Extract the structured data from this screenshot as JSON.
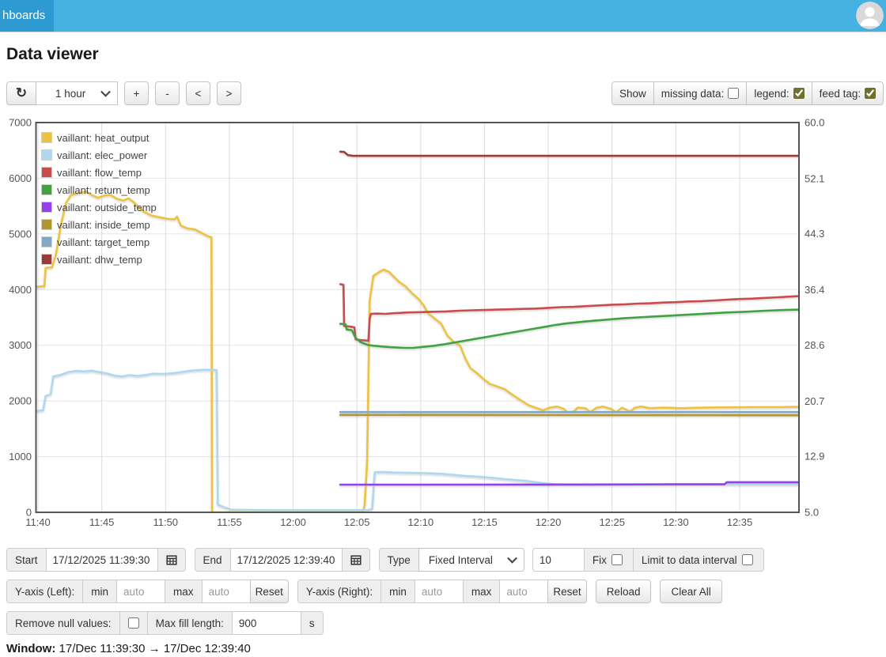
{
  "nav": {
    "tab_label": "hboards"
  },
  "page": {
    "title": "Data viewer"
  },
  "toolbar": {
    "refresh_icon": "↻",
    "interval_value": "1 hour",
    "zoom_in_label": "+",
    "zoom_out_label": "-",
    "pan_left_label": "<",
    "pan_right_label": ">",
    "show_label": "Show",
    "missing_data_label": "missing data:",
    "legend_label": "legend:",
    "feed_tag_label": "feed tag:",
    "missing_data_checked": false,
    "legend_checked": true,
    "feed_tag_checked": true
  },
  "chart_data": {
    "type": "line",
    "x_unit": "minutes since 11:40",
    "x_ticks": [
      "11:40",
      "11:45",
      "11:50",
      "11:55",
      "12:00",
      "12:05",
      "12:10",
      "12:15",
      "12:20",
      "12:25",
      "12:30",
      "12:35"
    ],
    "left_axis": {
      "min": 0,
      "max": 7000,
      "ticks": [
        0,
        1000,
        2000,
        3000,
        4000,
        5000,
        6000,
        7000
      ]
    },
    "right_axis": {
      "min": 5.0,
      "max": 60.0,
      "ticks": [
        5.0,
        12.9,
        20.7,
        28.6,
        36.4,
        44.3,
        52.1,
        60.0
      ]
    },
    "grid": true,
    "legend_position": "top-left",
    "series": [
      {
        "name": "vaillant: heat_output",
        "color": "#edc240",
        "axis": "left",
        "points": [
          [
            -0.2,
            4050
          ],
          [
            0.5,
            4060
          ],
          [
            0.6,
            4390
          ],
          [
            1.1,
            4400
          ],
          [
            1.4,
            4620
          ],
          [
            1.8,
            5160
          ],
          [
            2.2,
            5560
          ],
          [
            2.6,
            5700
          ],
          [
            3.2,
            5730
          ],
          [
            3.8,
            5760
          ],
          [
            4.2,
            5700
          ],
          [
            4.7,
            5650
          ],
          [
            5.2,
            5690
          ],
          [
            5.7,
            5700
          ],
          [
            6.2,
            5630
          ],
          [
            6.7,
            5600
          ],
          [
            7.1,
            5640
          ],
          [
            7.5,
            5570
          ],
          [
            7.9,
            5480
          ],
          [
            8.3,
            5400
          ],
          [
            8.9,
            5330
          ],
          [
            9.5,
            5300
          ],
          [
            10.2,
            5270
          ],
          [
            10.7,
            5260
          ],
          [
            10.9,
            5310
          ],
          [
            11.2,
            5150
          ],
          [
            11.7,
            5100
          ],
          [
            12.3,
            5080
          ],
          [
            12.9,
            5010
          ],
          [
            13.3,
            4960
          ],
          [
            13.6,
            4940
          ],
          [
            13.65,
            0
          ],
          [
            25.45,
            0
          ],
          [
            25.6,
            120
          ],
          [
            25.8,
            900
          ],
          [
            26.0,
            3800
          ],
          [
            26.3,
            4250
          ],
          [
            26.7,
            4310
          ],
          [
            27.1,
            4360
          ],
          [
            27.5,
            4320
          ],
          [
            27.9,
            4230
          ],
          [
            28.3,
            4140
          ],
          [
            28.8,
            4060
          ],
          [
            29.3,
            3940
          ],
          [
            29.8,
            3840
          ],
          [
            30.2,
            3730
          ],
          [
            30.6,
            3570
          ],
          [
            31.1,
            3480
          ],
          [
            31.6,
            3390
          ],
          [
            32.1,
            3170
          ],
          [
            32.6,
            3060
          ],
          [
            33.1,
            2990
          ],
          [
            33.5,
            2760
          ],
          [
            33.9,
            2590
          ],
          [
            34.4,
            2500
          ],
          [
            34.9,
            2400
          ],
          [
            35.4,
            2310
          ],
          [
            36.0,
            2260
          ],
          [
            36.6,
            2210
          ],
          [
            37.2,
            2110
          ],
          [
            37.8,
            2020
          ],
          [
            38.4,
            1930
          ],
          [
            39.0,
            1880
          ],
          [
            39.6,
            1830
          ],
          [
            40.1,
            1880
          ],
          [
            40.7,
            1900
          ],
          [
            41.2,
            1860
          ],
          [
            41.5,
            1800
          ],
          [
            42.0,
            1810
          ],
          [
            42.3,
            1880
          ],
          [
            42.9,
            1870
          ],
          [
            43.3,
            1800
          ],
          [
            43.8,
            1880
          ],
          [
            44.3,
            1900
          ],
          [
            44.9,
            1860
          ],
          [
            45.3,
            1800
          ],
          [
            45.8,
            1880
          ],
          [
            46.4,
            1810
          ],
          [
            46.8,
            1880
          ],
          [
            47.3,
            1900
          ],
          [
            48.0,
            1870
          ],
          [
            49.0,
            1880
          ],
          [
            50.5,
            1870
          ],
          [
            52.0,
            1880
          ],
          [
            54.0,
            1885
          ],
          [
            56.0,
            1890
          ],
          [
            58.0,
            1890
          ],
          [
            59.6,
            1895
          ]
        ]
      },
      {
        "name": "vaillant: elec_power",
        "color": "#aed7f0",
        "axis": "left",
        "points": [
          [
            -0.2,
            1820
          ],
          [
            0.4,
            1830
          ],
          [
            0.6,
            2090
          ],
          [
            1.0,
            2120
          ],
          [
            1.2,
            2440
          ],
          [
            1.8,
            2470
          ],
          [
            2.4,
            2520
          ],
          [
            3.0,
            2540
          ],
          [
            3.6,
            2530
          ],
          [
            4.2,
            2545
          ],
          [
            4.8,
            2520
          ],
          [
            5.4,
            2495
          ],
          [
            6.0,
            2455
          ],
          [
            6.6,
            2440
          ],
          [
            7.2,
            2465
          ],
          [
            7.8,
            2450
          ],
          [
            8.4,
            2465
          ],
          [
            9.0,
            2490
          ],
          [
            9.6,
            2485
          ],
          [
            10.2,
            2490
          ],
          [
            10.8,
            2505
          ],
          [
            11.4,
            2525
          ],
          [
            12.0,
            2545
          ],
          [
            12.6,
            2555
          ],
          [
            13.2,
            2560
          ],
          [
            14.0,
            2555
          ],
          [
            14.1,
            140
          ],
          [
            14.6,
            90
          ],
          [
            15.2,
            45
          ],
          [
            18.0,
            40
          ],
          [
            22.0,
            40
          ],
          [
            25.9,
            40
          ],
          [
            26.2,
            60
          ],
          [
            26.4,
            720
          ],
          [
            27.0,
            725
          ],
          [
            27.8,
            715
          ],
          [
            28.6,
            712
          ],
          [
            29.4,
            708
          ],
          [
            30.2,
            705
          ],
          [
            31.0,
            698
          ],
          [
            31.8,
            690
          ],
          [
            32.6,
            672
          ],
          [
            33.4,
            655
          ],
          [
            34.2,
            645
          ],
          [
            35.0,
            632
          ],
          [
            35.8,
            615
          ],
          [
            36.6,
            598
          ],
          [
            37.4,
            582
          ],
          [
            38.2,
            565
          ],
          [
            38.8,
            548
          ],
          [
            39.4,
            532
          ],
          [
            40.0,
            516
          ],
          [
            40.6,
            506
          ],
          [
            41.4,
            500
          ],
          [
            43.0,
            497
          ],
          [
            46.0,
            498
          ],
          [
            50.0,
            500
          ],
          [
            54.0,
            502
          ],
          [
            59.6,
            505
          ]
        ]
      },
      {
        "name": "vaillant: flow_temp",
        "color": "#ca4b4b",
        "axis": "right",
        "points": [
          [
            23.7,
            37.2
          ],
          [
            23.95,
            37.1
          ],
          [
            24.0,
            31.3
          ],
          [
            24.5,
            31.2
          ],
          [
            24.8,
            31.1
          ],
          [
            24.9,
            29.4
          ],
          [
            25.3,
            29.3
          ],
          [
            25.9,
            29.2
          ],
          [
            26.0,
            32.3
          ],
          [
            26.1,
            33.0
          ],
          [
            26.6,
            33.05
          ],
          [
            27.2,
            33.0
          ],
          [
            28.0,
            33.1
          ],
          [
            29.0,
            33.2
          ],
          [
            30.0,
            33.25
          ],
          [
            31.0,
            33.3
          ],
          [
            32.0,
            33.35
          ],
          [
            33.0,
            33.45
          ],
          [
            34.0,
            33.5
          ],
          [
            35.0,
            33.55
          ],
          [
            36.0,
            33.6
          ],
          [
            37.0,
            33.65
          ],
          [
            38.0,
            33.7
          ],
          [
            39.0,
            33.75
          ],
          [
            40.0,
            33.85
          ],
          [
            41.0,
            33.95
          ],
          [
            42.0,
            34.0
          ],
          [
            43.0,
            34.1
          ],
          [
            44.0,
            34.2
          ],
          [
            45.0,
            34.3
          ],
          [
            46.0,
            34.35
          ],
          [
            47.0,
            34.45
          ],
          [
            48.0,
            34.5
          ],
          [
            49.0,
            34.6
          ],
          [
            50.0,
            34.65
          ],
          [
            51.0,
            34.75
          ],
          [
            52.0,
            34.8
          ],
          [
            53.0,
            34.9
          ],
          [
            54.0,
            35.0
          ],
          [
            55.0,
            35.1
          ],
          [
            56.0,
            35.15
          ],
          [
            57.0,
            35.25
          ],
          [
            58.0,
            35.35
          ],
          [
            59.0,
            35.45
          ],
          [
            59.6,
            35.5
          ]
        ]
      },
      {
        "name": "vaillant: return_temp",
        "color": "#43a143",
        "axis": "right",
        "points": [
          [
            23.7,
            31.6
          ],
          [
            24.1,
            31.55
          ],
          [
            24.2,
            30.8
          ],
          [
            24.6,
            30.7
          ],
          [
            24.9,
            29.6
          ],
          [
            25.3,
            29.0
          ],
          [
            25.9,
            28.6
          ],
          [
            26.4,
            28.5
          ],
          [
            27.0,
            28.4
          ],
          [
            27.6,
            28.3
          ],
          [
            28.2,
            28.25
          ],
          [
            28.8,
            28.2
          ],
          [
            29.4,
            28.2
          ],
          [
            30.2,
            28.35
          ],
          [
            31.0,
            28.5
          ],
          [
            31.8,
            28.7
          ],
          [
            32.6,
            28.95
          ],
          [
            33.4,
            29.2
          ],
          [
            34.2,
            29.45
          ],
          [
            35.0,
            29.7
          ],
          [
            35.8,
            29.95
          ],
          [
            36.6,
            30.2
          ],
          [
            37.4,
            30.45
          ],
          [
            38.2,
            30.7
          ],
          [
            39.0,
            30.95
          ],
          [
            39.8,
            31.2
          ],
          [
            40.6,
            31.45
          ],
          [
            41.4,
            31.65
          ],
          [
            42.2,
            31.8
          ],
          [
            43.0,
            31.95
          ],
          [
            44.0,
            32.1
          ],
          [
            45.0,
            32.25
          ],
          [
            46.0,
            32.4
          ],
          [
            47.0,
            32.5
          ],
          [
            48.0,
            32.6
          ],
          [
            49.5,
            32.75
          ],
          [
            51.0,
            32.9
          ],
          [
            52.5,
            33.05
          ],
          [
            54.0,
            33.2
          ],
          [
            55.5,
            33.3
          ],
          [
            57.0,
            33.45
          ],
          [
            58.5,
            33.55
          ],
          [
            59.6,
            33.6
          ]
        ]
      },
      {
        "name": "vaillant: outside_temp",
        "color": "#9440ed",
        "axis": "right",
        "points": [
          [
            23.7,
            8.9
          ],
          [
            30.0,
            8.9
          ],
          [
            40.0,
            8.92
          ],
          [
            50.0,
            8.95
          ],
          [
            53.8,
            8.95
          ],
          [
            54.0,
            9.25
          ],
          [
            59.6,
            9.25
          ]
        ]
      },
      {
        "name": "vaillant: inside_temp",
        "color": "#b2952d",
        "axis": "right",
        "points": [
          [
            23.7,
            18.75
          ],
          [
            40.0,
            18.72
          ],
          [
            59.6,
            18.7
          ]
        ]
      },
      {
        "name": "vaillant: target_temp",
        "color": "#84a7c3",
        "axis": "right",
        "points": [
          [
            23.7,
            19.15
          ],
          [
            59.6,
            19.15
          ]
        ]
      },
      {
        "name": "vaillant: dhw_temp",
        "color": "#9e3a3a",
        "axis": "right",
        "points": [
          [
            23.7,
            55.9
          ],
          [
            24.0,
            55.85
          ],
          [
            24.3,
            55.4
          ],
          [
            24.7,
            55.3
          ],
          [
            30.0,
            55.3
          ],
          [
            45.0,
            55.3
          ],
          [
            59.6,
            55.3
          ]
        ]
      }
    ]
  },
  "controls": {
    "start_label": "Start",
    "start_value": "17/12/2025 11:39:30",
    "end_label": "End",
    "end_value": "17/12/2025 12:39:40",
    "type_label": "Type",
    "type_value": "Fixed Interval",
    "interval_value": "10",
    "fix_label": "Fix",
    "fix_checked": false,
    "limit_label": "Limit to data interval",
    "limit_checked": false,
    "yaxis_left_label": "Y-axis (Left):",
    "yaxis_right_label": "Y-axis (Right):",
    "min_label": "min",
    "max_label": "max",
    "auto_placeholder": "auto",
    "reset_label": "Reset",
    "reload_label": "Reload",
    "clear_all_label": "Clear All",
    "remove_null_label": "Remove null values:",
    "remove_null_checked": false,
    "max_fill_label": "Max fill length:",
    "max_fill_value": "900",
    "seconds_label": "s"
  },
  "window_line": {
    "label": "Window:",
    "value": "17/Dec 11:39:30 → 17/Dec 12:39:40"
  }
}
